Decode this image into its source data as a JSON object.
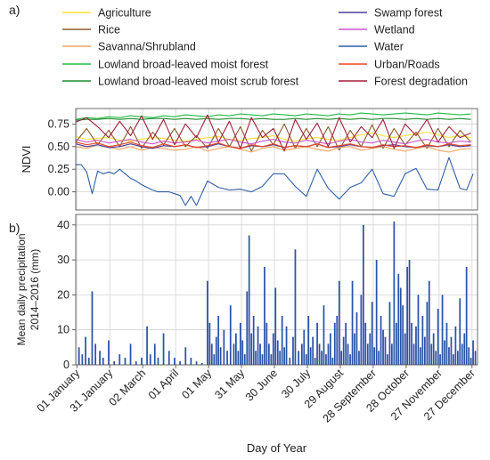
{
  "chart_data": [
    {
      "type": "line",
      "panel_label": "a)",
      "ylabel": "NDVI",
      "xlim": [
        0,
        366
      ],
      "ylim": [
        -0.2,
        0.92
      ],
      "yticks": [
        0.0,
        0.25,
        0.5,
        0.75
      ],
      "ytick_labels": [
        "0.00",
        "0.25",
        "0.50",
        "0.75"
      ],
      "grid": true,
      "legend_position": "above plot",
      "series": [
        {
          "name": "Agriculture",
          "color": "#ffe135",
          "x": [
            0,
            10,
            20,
            30,
            40,
            50,
            60,
            70,
            80,
            90,
            100,
            110,
            120,
            130,
            140,
            150,
            160,
            170,
            180,
            190,
            200,
            210,
            220,
            230,
            240,
            250,
            260,
            270,
            280,
            290,
            300,
            310,
            320,
            330,
            340,
            350,
            360
          ],
          "y": [
            0.61,
            0.58,
            0.59,
            0.6,
            0.57,
            0.56,
            0.58,
            0.6,
            0.59,
            0.57,
            0.56,
            0.58,
            0.6,
            0.61,
            0.58,
            0.57,
            0.59,
            0.6,
            0.62,
            0.58,
            0.56,
            0.59,
            0.6,
            0.58,
            0.57,
            0.6,
            0.63,
            0.65,
            0.62,
            0.6,
            0.62,
            0.64,
            0.66,
            0.63,
            0.6,
            0.62,
            0.6
          ]
        },
        {
          "name": "Rice",
          "color": "#8b5a2b",
          "x": [
            0,
            10,
            20,
            30,
            40,
            50,
            60,
            70,
            80,
            90,
            100,
            110,
            120,
            130,
            140,
            150,
            160,
            170,
            180,
            190,
            200,
            210,
            220,
            230,
            240,
            250,
            260,
            270,
            280,
            290,
            300,
            310,
            320,
            330,
            340,
            350,
            360
          ],
          "y": [
            0.55,
            0.7,
            0.52,
            0.68,
            0.5,
            0.72,
            0.48,
            0.66,
            0.52,
            0.7,
            0.5,
            0.62,
            0.48,
            0.7,
            0.5,
            0.72,
            0.45,
            0.68,
            0.52,
            0.75,
            0.48,
            0.7,
            0.5,
            0.72,
            0.46,
            0.68,
            0.5,
            0.74,
            0.48,
            0.7,
            0.52,
            0.66,
            0.48,
            0.7,
            0.5,
            0.68,
            0.55
          ]
        },
        {
          "name": "Savanna/Shrubland",
          "color": "#f4a460",
          "x": [
            0,
            10,
            20,
            30,
            40,
            50,
            60,
            70,
            80,
            90,
            100,
            110,
            120,
            130,
            140,
            150,
            160,
            170,
            180,
            190,
            200,
            210,
            220,
            230,
            240,
            250,
            260,
            270,
            280,
            290,
            300,
            310,
            320,
            330,
            340,
            350,
            360
          ],
          "y": [
            0.5,
            0.48,
            0.52,
            0.49,
            0.47,
            0.5,
            0.46,
            0.49,
            0.48,
            0.46,
            0.47,
            0.5,
            0.45,
            0.48,
            0.5,
            0.47,
            0.44,
            0.48,
            0.5,
            0.46,
            0.48,
            0.5,
            0.47,
            0.45,
            0.49,
            0.5,
            0.46,
            0.48,
            0.5,
            0.47,
            0.45,
            0.48,
            0.5,
            0.46,
            0.44,
            0.47,
            0.48
          ]
        },
        {
          "name": "Lowland broad-leaved moist forest",
          "color": "#22bb44",
          "x": [
            0,
            10,
            20,
            30,
            40,
            50,
            60,
            70,
            80,
            90,
            100,
            110,
            120,
            130,
            140,
            150,
            160,
            170,
            180,
            190,
            200,
            210,
            220,
            230,
            240,
            250,
            260,
            270,
            280,
            290,
            300,
            310,
            320,
            330,
            340,
            350,
            360
          ],
          "y": [
            0.8,
            0.82,
            0.81,
            0.83,
            0.82,
            0.84,
            0.83,
            0.82,
            0.84,
            0.83,
            0.85,
            0.84,
            0.83,
            0.85,
            0.84,
            0.86,
            0.85,
            0.84,
            0.86,
            0.85,
            0.84,
            0.86,
            0.85,
            0.84,
            0.86,
            0.85,
            0.87,
            0.86,
            0.85,
            0.86,
            0.87,
            0.86,
            0.85,
            0.87,
            0.86,
            0.85,
            0.86
          ]
        },
        {
          "name": "Lowland broad-leaved moist scrub forest",
          "color": "#1e8b2e",
          "x": [
            0,
            10,
            20,
            30,
            40,
            50,
            60,
            70,
            80,
            90,
            100,
            110,
            120,
            130,
            140,
            150,
            160,
            170,
            180,
            190,
            200,
            210,
            220,
            230,
            240,
            250,
            260,
            270,
            280,
            290,
            300,
            310,
            320,
            330,
            340,
            350,
            360
          ],
          "y": [
            0.79,
            0.8,
            0.8,
            0.81,
            0.8,
            0.81,
            0.8,
            0.81,
            0.81,
            0.8,
            0.81,
            0.8,
            0.81,
            0.8,
            0.81,
            0.81,
            0.8,
            0.81,
            0.8,
            0.8,
            0.81,
            0.8,
            0.81,
            0.8,
            0.81,
            0.8,
            0.81,
            0.8,
            0.81,
            0.81,
            0.8,
            0.81,
            0.8,
            0.81,
            0.8,
            0.81,
            0.8
          ]
        },
        {
          "name": "Swamp forest",
          "color": "#4b3f9e",
          "x": [
            0,
            10,
            20,
            30,
            40,
            50,
            60,
            70,
            80,
            90,
            100,
            110,
            120,
            130,
            140,
            150,
            160,
            170,
            180,
            190,
            200,
            210,
            220,
            230,
            240,
            250,
            260,
            270,
            280,
            290,
            300,
            310,
            320,
            330,
            340,
            350,
            360
          ],
          "y": [
            0.53,
            0.5,
            0.52,
            0.49,
            0.5,
            0.53,
            0.5,
            0.48,
            0.51,
            0.5,
            0.52,
            0.49,
            0.5,
            0.53,
            0.5,
            0.48,
            0.51,
            0.5,
            0.52,
            0.49,
            0.51,
            0.5,
            0.53,
            0.49,
            0.5,
            0.52,
            0.5,
            0.49,
            0.51,
            0.52,
            0.5,
            0.49,
            0.51,
            0.5,
            0.52,
            0.5,
            0.51
          ]
        },
        {
          "name": "Wetland",
          "color": "#cc55cc",
          "x": [
            0,
            10,
            20,
            30,
            40,
            50,
            60,
            70,
            80,
            90,
            100,
            110,
            120,
            130,
            140,
            150,
            160,
            170,
            180,
            190,
            200,
            210,
            220,
            230,
            240,
            250,
            260,
            270,
            280,
            290,
            300,
            310,
            320,
            330,
            340,
            350,
            360
          ],
          "y": [
            0.58,
            0.55,
            0.57,
            0.54,
            0.56,
            0.58,
            0.55,
            0.53,
            0.56,
            0.54,
            0.55,
            0.57,
            0.54,
            0.56,
            0.58,
            0.55,
            0.53,
            0.56,
            0.58,
            0.55,
            0.54,
            0.57,
            0.55,
            0.53,
            0.56,
            0.58,
            0.55,
            0.54,
            0.57,
            0.55,
            0.53,
            0.56,
            0.58,
            0.55,
            0.54,
            0.56,
            0.55
          ]
        },
        {
          "name": "Water",
          "color": "#2f5fa8",
          "x": [
            0,
            5,
            10,
            15,
            20,
            25,
            30,
            35,
            40,
            45,
            50,
            55,
            60,
            65,
            70,
            75,
            80,
            85,
            90,
            95,
            100,
            105,
            110,
            120,
            130,
            140,
            150,
            160,
            170,
            180,
            190,
            200,
            210,
            220,
            230,
            240,
            250,
            260,
            270,
            280,
            290,
            300,
            310,
            320,
            330,
            340,
            350,
            356,
            362
          ],
          "y": [
            0.3,
            0.3,
            0.22,
            -0.02,
            0.23,
            0.2,
            0.22,
            0.2,
            0.25,
            0.2,
            0.15,
            0.12,
            0.08,
            0.05,
            0.02,
            0.0,
            0.0,
            0.0,
            -0.02,
            -0.04,
            -0.15,
            -0.05,
            -0.15,
            0.12,
            0.05,
            0.02,
            0.03,
            0.0,
            0.06,
            0.2,
            0.2,
            0.06,
            -0.05,
            0.25,
            0.04,
            -0.08,
            0.05,
            0.1,
            0.25,
            -0.02,
            -0.05,
            0.2,
            0.26,
            0.03,
            0.02,
            0.38,
            0.04,
            0.02,
            0.2
          ]
        },
        {
          "name": "Urban/Roads",
          "color": "#ee4422",
          "x": [
            0,
            10,
            20,
            30,
            40,
            50,
            60,
            70,
            80,
            90,
            100,
            110,
            120,
            130,
            140,
            150,
            160,
            170,
            180,
            190,
            200,
            210,
            220,
            230,
            240,
            250,
            260,
            270,
            280,
            290,
            300,
            310,
            320,
            330,
            340,
            350,
            360
          ],
          "y": [
            0.55,
            0.52,
            0.54,
            0.5,
            0.52,
            0.55,
            0.51,
            0.49,
            0.53,
            0.5,
            0.52,
            0.49,
            0.51,
            0.54,
            0.5,
            0.48,
            0.52,
            0.5,
            0.53,
            0.49,
            0.51,
            0.5,
            0.53,
            0.49,
            0.51,
            0.53,
            0.5,
            0.49,
            0.52,
            0.5,
            0.51,
            0.49,
            0.52,
            0.5,
            0.53,
            0.51,
            0.52
          ]
        },
        {
          "name": "Forest degradation",
          "color": "#a31e3c",
          "x": [
            0,
            10,
            20,
            30,
            40,
            50,
            60,
            70,
            80,
            90,
            100,
            110,
            120,
            130,
            140,
            150,
            160,
            170,
            180,
            190,
            200,
            210,
            220,
            230,
            240,
            250,
            260,
            270,
            280,
            290,
            300,
            310,
            320,
            330,
            340,
            350,
            360
          ],
          "y": [
            0.77,
            0.82,
            0.72,
            0.6,
            0.78,
            0.62,
            0.84,
            0.58,
            0.8,
            0.52,
            0.75,
            0.6,
            0.85,
            0.55,
            0.78,
            0.48,
            0.82,
            0.6,
            0.7,
            0.45,
            0.8,
            0.58,
            0.76,
            0.5,
            0.82,
            0.55,
            0.72,
            0.6,
            0.8,
            0.48,
            0.75,
            0.62,
            0.8,
            0.55,
            0.72,
            0.6,
            0.65
          ]
        }
      ]
    },
    {
      "type": "bar",
      "panel_label": "b)",
      "ylabel": "Mean daily precipitation\n2014–2016 (mm)",
      "xlabel": "Day of Year",
      "xlim": [
        0,
        366
      ],
      "ylim": [
        0,
        43
      ],
      "yticks": [
        0,
        10,
        20,
        30,
        40
      ],
      "ytick_labels": [
        "0",
        "10",
        "20",
        "30",
        "40"
      ],
      "grid": true,
      "color": "#2a52a8",
      "xticks": [
        1,
        31,
        61,
        91,
        121,
        151,
        181,
        211,
        241,
        271,
        301,
        331,
        361
      ],
      "xtick_labels": [
        "01 January",
        "31 January",
        "02 March",
        "01 April",
        "01 May",
        "31 May",
        "30 June",
        "30 July",
        "29 August",
        "28 September",
        "28 October",
        "27 November",
        "27 December"
      ],
      "x": [
        3,
        6,
        9,
        12,
        15,
        18,
        22,
        25,
        30,
        35,
        40,
        45,
        50,
        55,
        60,
        65,
        68,
        72,
        75,
        80,
        85,
        90,
        95,
        100,
        105,
        110,
        115,
        120,
        122,
        124,
        126,
        128,
        130,
        132,
        135,
        138,
        141,
        144,
        146,
        148,
        150,
        152,
        154,
        156,
        158,
        160,
        162,
        164,
        166,
        168,
        170,
        172,
        174,
        176,
        178,
        180,
        182,
        184,
        186,
        188,
        190,
        192,
        195,
        198,
        200,
        203,
        206,
        208,
        210,
        212,
        214,
        216,
        218,
        220,
        222,
        224,
        226,
        228,
        230,
        232,
        234,
        236,
        238,
        240,
        242,
        244,
        246,
        248,
        250,
        252,
        254,
        256,
        258,
        260,
        262,
        264,
        266,
        268,
        270,
        272,
        274,
        276,
        278,
        280,
        282,
        284,
        286,
        288,
        290,
        292,
        294,
        296,
        298,
        300,
        302,
        304,
        306,
        308,
        310,
        312,
        314,
        316,
        318,
        320,
        322,
        324,
        326,
        328,
        330,
        332,
        334,
        336,
        338,
        340,
        342,
        344,
        346,
        348,
        350,
        352,
        354,
        356,
        358,
        360,
        362,
        364
      ],
      "values": [
        5,
        3,
        8,
        2,
        21,
        6,
        4,
        2,
        7,
        1,
        3,
        2,
        6,
        1,
        2,
        11,
        3,
        6,
        2,
        9,
        4,
        2,
        1,
        5,
        2,
        1,
        0.5,
        24,
        12,
        6,
        3,
        8,
        14,
        5,
        10,
        4,
        17,
        6,
        9,
        4,
        12,
        7,
        3,
        21,
        37,
        9,
        14,
        4,
        11,
        6,
        3,
        28,
        12,
        6,
        3,
        9,
        22,
        7,
        4,
        14,
        5,
        11,
        2,
        8,
        33,
        4,
        6,
        10,
        3,
        14,
        5,
        8,
        2,
        12,
        6,
        4,
        17,
        3,
        6,
        9,
        2,
        12,
        14,
        24,
        4,
        8,
        12,
        6,
        3,
        24,
        9,
        15,
        4,
        20,
        40,
        12,
        6,
        9,
        18,
        5,
        30,
        4,
        14,
        10,
        8,
        3,
        18,
        6,
        41,
        12,
        26,
        22,
        17,
        9,
        28,
        30,
        12,
        6,
        11,
        20,
        5,
        14,
        8,
        18,
        24,
        6,
        9,
        4,
        16,
        3,
        20,
        7,
        12,
        5,
        8,
        3,
        11,
        4,
        19,
        6,
        9,
        28,
        5,
        2,
        7,
        4
      ]
    }
  ]
}
